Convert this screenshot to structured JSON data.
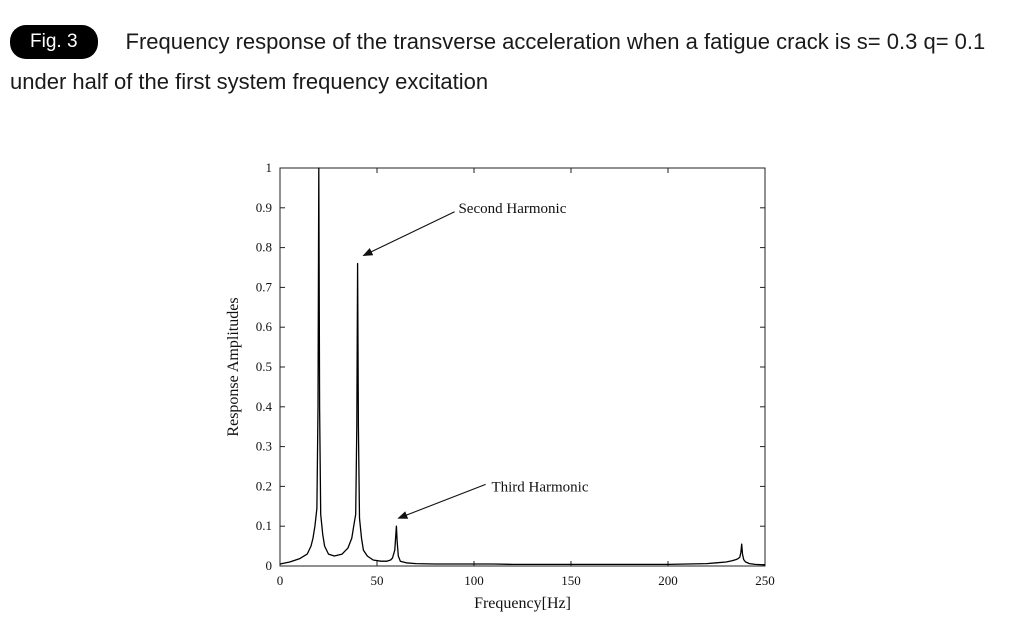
{
  "caption": {
    "badge": "Fig. 3",
    "text": "Frequency response of the transverse acceleration when a fatigue crack is s= 0.3 q= 0.1 under half of the first system frequency excitation"
  },
  "chart_data": {
    "type": "line",
    "title": "",
    "xlabel": "Frequency[Hz]",
    "ylabel": "Response Amplitudes",
    "xlim": [
      0,
      250
    ],
    "ylim": [
      0,
      1
    ],
    "xticks": [
      0,
      50,
      100,
      150,
      200,
      250
    ],
    "xtick_labels": [
      "0",
      "50",
      "100",
      "150",
      "200",
      "250"
    ],
    "yticks": [
      0,
      0.1,
      0.2,
      0.3,
      0.4,
      0.5,
      0.6,
      0.7,
      0.8,
      0.9,
      1
    ],
    "ytick_labels": [
      "0",
      "0.1",
      "0.2",
      "0.3",
      "0.4",
      "0.5",
      "0.6",
      "0.7",
      "0.8",
      "0.9",
      "1"
    ],
    "grid": false,
    "line_color": "#000000",
    "series": [
      {
        "x": [
          0,
          5,
          10,
          14,
          16,
          17,
          18,
          19,
          19.6,
          20,
          20.4,
          21,
          22,
          23,
          25,
          28,
          32,
          35,
          37,
          38,
          39,
          39.6,
          40,
          40.4,
          41,
          42,
          43,
          45,
          48,
          52,
          55,
          57,
          58,
          59.2,
          59.6,
          60,
          60.4,
          61,
          62,
          65,
          70,
          80,
          90,
          100,
          110,
          120,
          130,
          140,
          150,
          160,
          170,
          180,
          190,
          200,
          210,
          220,
          225,
          230,
          233,
          235,
          236,
          237,
          237.6,
          238,
          238.4,
          239,
          240,
          242,
          245,
          250
        ],
        "y": [
          0.005,
          0.01,
          0.018,
          0.03,
          0.05,
          0.07,
          0.1,
          0.145,
          0.4,
          1.0,
          0.4,
          0.13,
          0.08,
          0.05,
          0.03,
          0.025,
          0.03,
          0.045,
          0.07,
          0.1,
          0.13,
          0.35,
          0.76,
          0.35,
          0.12,
          0.07,
          0.04,
          0.025,
          0.015,
          0.012,
          0.012,
          0.015,
          0.02,
          0.04,
          0.07,
          0.1,
          0.06,
          0.025,
          0.012,
          0.008,
          0.006,
          0.005,
          0.005,
          0.005,
          0.005,
          0.004,
          0.004,
          0.004,
          0.004,
          0.004,
          0.004,
          0.004,
          0.004,
          0.004,
          0.005,
          0.006,
          0.008,
          0.01,
          0.013,
          0.016,
          0.018,
          0.022,
          0.035,
          0.055,
          0.03,
          0.016,
          0.01,
          0.006,
          0.004,
          0.003
        ]
      }
    ],
    "annotations": [
      {
        "text": "Second Harmonic",
        "text_x": 92,
        "text_y": 0.9,
        "tip_x": 43,
        "tip_y": 0.78,
        "tail_x": 90,
        "tail_y": 0.89
      },
      {
        "text": "Third Harmonic",
        "text_x": 109,
        "text_y": 0.2,
        "tip_x": 61,
        "tip_y": 0.12,
        "tail_x": 106,
        "tail_y": 0.205
      }
    ]
  }
}
